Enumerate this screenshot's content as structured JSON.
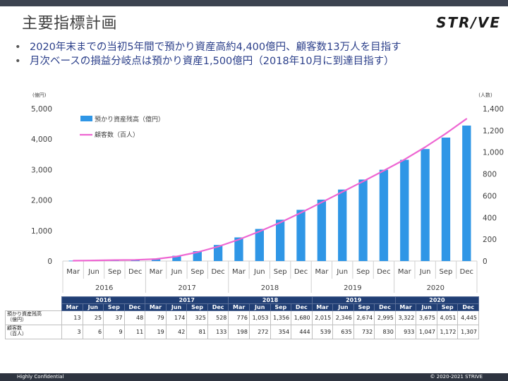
{
  "header": {
    "title": "主要指標計画",
    "brand": "STR/VE"
  },
  "bullets": [
    "2020年末までの当初5年間で預かり資産高約4,400億円、顧客数13万人を目指す",
    "月次ベースの損益分岐点は預かり資産1,500億円（2018年10月に到達目指す）"
  ],
  "chart_data": {
    "type": "bar",
    "unit_left": "(億円)",
    "unit_right": "(人数)",
    "years": [
      "2016",
      "2017",
      "2018",
      "2019",
      "2020"
    ],
    "categories": [
      "Mar",
      "Jun",
      "Sep",
      "Dec",
      "Mar",
      "Jun",
      "Sep",
      "Dec",
      "Mar",
      "Jun",
      "Sep",
      "Dec",
      "Mar",
      "Jun",
      "Sep",
      "Dec",
      "Mar",
      "Jun",
      "Sep",
      "Dec"
    ],
    "ylim_left": [
      0,
      5000
    ],
    "yticks_left": [
      "0",
      "1,000",
      "2,000",
      "3,000",
      "4,000",
      "5,000"
    ],
    "ylim_right": [
      0,
      1400
    ],
    "yticks_right": [
      "0",
      "200",
      "400",
      "600",
      "800",
      "1,000",
      "1,200",
      "1,400"
    ],
    "series": [
      {
        "name": "預かり資産残高（億円）",
        "type": "bar",
        "color": "#2f96e6",
        "values": [
          13,
          25,
          37,
          48,
          79,
          174,
          325,
          528,
          776,
          1053,
          1356,
          1680,
          2015,
          2346,
          2674,
          2995,
          3322,
          3675,
          4051,
          4445
        ]
      },
      {
        "name": "顧客数（百人）",
        "type": "line",
        "color": "#ee66d2",
        "values": [
          3,
          6,
          9,
          11,
          19,
          42,
          81,
          133,
          198,
          272,
          354,
          444,
          539,
          635,
          732,
          830,
          933,
          1047,
          1172,
          1307
        ]
      }
    ],
    "legend": "top-left",
    "grid": false
  },
  "table": {
    "rows": [
      {
        "label_lines": [
          "預かり資産残高",
          "（億円）"
        ],
        "values": [
          "13",
          "25",
          "37",
          "48",
          "79",
          "174",
          "325",
          "528",
          "776",
          "1,053",
          "1,356",
          "1,680",
          "2,015",
          "2,346",
          "2,674",
          "2,995",
          "3,322",
          "3,675",
          "4,051",
          "4,445"
        ]
      },
      {
        "label_lines": [
          "顧客数",
          "（百人）"
        ],
        "values": [
          "3",
          "6",
          "9",
          "11",
          "19",
          "42",
          "81",
          "133",
          "198",
          "272",
          "354",
          "444",
          "539",
          "635",
          "732",
          "830",
          "933",
          "1,047",
          "1,172",
          "1,307"
        ]
      }
    ]
  },
  "footer": {
    "left": "Highly Confidential",
    "right": "© 2020-2021 STRIVE"
  }
}
